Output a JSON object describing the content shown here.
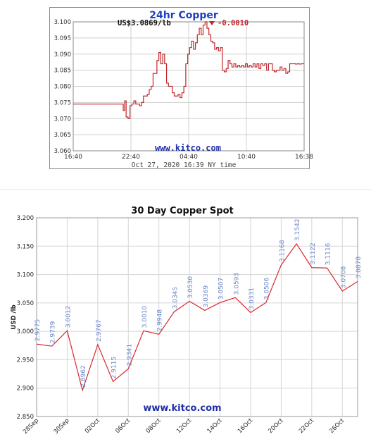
{
  "chart_data": [
    {
      "type": "line",
      "title": "24hr Copper",
      "price_label": "US$3.0869/lb",
      "change_label": "-0.0010",
      "watermark": "www.kitco.com",
      "footer": "Oct 27, 2020 16:39 NY time",
      "x_tick_labels": [
        "16:40",
        "22:40",
        "04:40",
        "10:40",
        "16:38"
      ],
      "y_tick_labels": [
        "3.060",
        "3.065",
        "3.070",
        "3.075",
        "3.080",
        "3.085",
        "3.090",
        "3.095",
        "3.100"
      ],
      "ylim": [
        3.06,
        3.1
      ],
      "xlim": [
        0,
        24
      ],
      "grid": true,
      "colors": {
        "title": "#1f3fbf",
        "line": "#c0272d",
        "change": "#c0272d",
        "grid": "#cfcfcf",
        "watermark": "#1f2fa8"
      },
      "x": [
        0,
        5.1,
        5.2,
        5.35,
        5.5,
        5.7,
        5.9,
        6.1,
        6.3,
        6.5,
        6.7,
        6.9,
        7.1,
        7.3,
        7.5,
        7.7,
        7.9,
        8.1,
        8.3,
        8.5,
        8.7,
        8.9,
        9.1,
        9.3,
        9.5,
        9.7,
        9.9,
        10.1,
        10.3,
        10.5,
        10.7,
        10.9,
        11.1,
        11.3,
        11.5,
        11.7,
        11.9,
        12.1,
        12.3,
        12.5,
        12.7,
        12.9,
        13.1,
        13.3,
        13.5,
        13.7,
        13.9,
        14.1,
        14.3,
        14.5,
        14.7,
        14.9,
        15.1,
        15.3,
        15.5,
        15.7,
        15.9,
        16.1,
        16.3,
        16.5,
        16.7,
        16.9,
        17.1,
        17.3,
        17.5,
        17.7,
        17.9,
        18.1,
        18.3,
        18.5,
        18.7,
        18.9,
        19.1,
        19.3,
        19.5,
        19.7,
        19.9,
        20.1,
        20.3,
        20.5,
        20.7,
        20.9,
        21.1,
        21.3,
        21.5,
        21.7,
        21.9,
        22.1,
        22.3,
        22.5,
        22.7,
        22.9,
        23.1,
        23.3,
        23.5,
        23.7,
        23.97
      ],
      "y": [
        3.0745,
        3.0745,
        3.0725,
        3.0755,
        3.0705,
        3.07,
        3.074,
        3.0745,
        3.0755,
        3.0745,
        3.0745,
        3.074,
        3.075,
        3.077,
        3.077,
        3.0775,
        3.079,
        3.08,
        3.084,
        3.084,
        3.088,
        3.0905,
        3.087,
        3.09,
        3.087,
        3.081,
        3.08,
        3.08,
        3.078,
        3.077,
        3.077,
        3.0775,
        3.0765,
        3.078,
        3.08,
        3.087,
        3.09,
        3.092,
        3.094,
        3.0915,
        3.0935,
        3.096,
        3.098,
        3.096,
        3.099,
        3.1,
        3.098,
        3.096,
        3.094,
        3.0935,
        3.0915,
        3.092,
        3.091,
        3.092,
        3.085,
        3.0845,
        3.0855,
        3.088,
        3.087,
        3.086,
        3.087,
        3.086,
        3.0865,
        3.086,
        3.0865,
        3.086,
        3.087,
        3.086,
        3.0865,
        3.086,
        3.087,
        3.086,
        3.087,
        3.0855,
        3.087,
        3.0865,
        3.087,
        3.085,
        3.087,
        3.087,
        3.085,
        3.0845,
        3.085,
        3.085,
        3.086,
        3.085,
        3.0855,
        3.084,
        3.0845,
        3.087,
        3.087,
        3.087,
        3.0869,
        3.087,
        3.0869,
        3.087,
        3.0869
      ]
    },
    {
      "type": "line",
      "title": "30 Day Copper Spot",
      "ylabel": "USD /lb",
      "watermark": "www.kitco.com",
      "ylim": [
        2.85,
        3.2
      ],
      "y_tick_labels": [
        "2.850",
        "2.900",
        "2.950",
        "3.000",
        "3.050",
        "3.100",
        "3.150",
        "3.200"
      ],
      "x_tick_labels": [
        "28Sep",
        "30Sep",
        "02Oct",
        "06Oct",
        "08Oct",
        "12Oct",
        "14Oct",
        "16Oct",
        "20Oct",
        "22Oct",
        "26Oct"
      ],
      "x_tick_positions": [
        0,
        2,
        4,
        6,
        8,
        10,
        12,
        14,
        16,
        18,
        20
      ],
      "grid": true,
      "colors": {
        "line": "#d9262d",
        "point_label": "#6b86c7",
        "grid": "#d6d6d6",
        "watermark": "#1f2fa8"
      },
      "x": [
        0,
        1,
        2,
        3,
        4,
        5,
        6,
        7,
        8,
        9,
        10,
        11,
        12,
        13,
        14,
        15,
        16,
        17,
        18,
        19,
        20,
        21
      ],
      "values": [
        2.9775,
        2.9739,
        3.0012,
        2.8962,
        2.9767,
        2.9115,
        2.9341,
        3.001,
        2.9948,
        3.0345,
        3.053,
        3.0369,
        3.0507,
        3.0593,
        3.0331,
        3.0506,
        3.1168,
        3.1542,
        3.1122,
        3.1116,
        3.0708,
        3.0878
      ],
      "point_labels": [
        "2.9775",
        "2.9739",
        "3.0012",
        "2.8962",
        "2.9767",
        "2.9115",
        "2.9341",
        "3.0010",
        "2.9948",
        "3.0345",
        "3.0530",
        "3.0369",
        "3.0507",
        "3.0593",
        "3.0331",
        "3.0506",
        "3.1168",
        "3.1542",
        "3.1122",
        "3.1116",
        "3.0708",
        "3.0878"
      ]
    }
  ]
}
